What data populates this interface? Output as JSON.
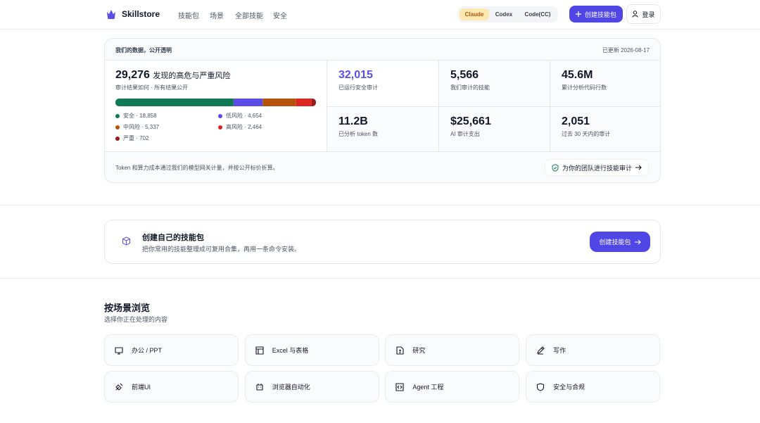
{
  "nav": {
    "brand": "Skillstore",
    "links": [
      "技能包",
      "场景",
      "全部技能",
      "安全"
    ],
    "tabs": [
      "Claude",
      "Codex",
      "Code(CC)"
    ],
    "create": "创建技能包",
    "login": "登录"
  },
  "stats": {
    "header": "我们的数据，公开透明",
    "updated": "已更新 2026-08-17",
    "audit": {
      "count": "29,276",
      "count_label": "发现的高危与严重风险",
      "sub": "审计结果如何 · 所有结果公开"
    },
    "risks": [
      {
        "label": "安全 · 18,858",
        "value": 18858,
        "color": "#0f7a55"
      },
      {
        "label": "低风险 · 4,654",
        "value": 4654,
        "color": "#5b4ee6"
      },
      {
        "label": "中风险 · 5,337",
        "value": 5337,
        "color": "#b45309"
      },
      {
        "label": "高风险 · 2,464",
        "value": 2464,
        "color": "#dc2626"
      },
      {
        "label": "严重 · 702",
        "value": 702,
        "color": "#991b1b"
      }
    ],
    "metrics": [
      {
        "value": "32,015",
        "label": "已运行安全审计"
      },
      {
        "value": "5,566",
        "label": "我们审计的技能"
      },
      {
        "value": "45.6M",
        "label": "累计分析代码行数"
      },
      {
        "value": "11.2B",
        "label": "已分析 token 数"
      },
      {
        "value": "$25,661",
        "label": "AI 审计支出"
      },
      {
        "value": "2,051",
        "label": "过去 30 天内的审计"
      }
    ],
    "note": "Token 和算力成本通过我们的模型网关计量，并按公开标价折算。",
    "audit_button": "为你的团队进行技能审计"
  },
  "create_card": {
    "title": "创建自己的技能包",
    "desc": "把你常用的技能整理成可复用合集，再用一条命令安装。",
    "button": "创建技能包"
  },
  "scenes": {
    "title": "按场景浏览",
    "subtitle": "选择你正在处理的内容",
    "items": [
      "办公 / PPT",
      "Excel 与表格",
      "研究",
      "写作",
      "前端UI",
      "浏览器自动化",
      "Agent 工程",
      "安全与合规"
    ]
  }
}
